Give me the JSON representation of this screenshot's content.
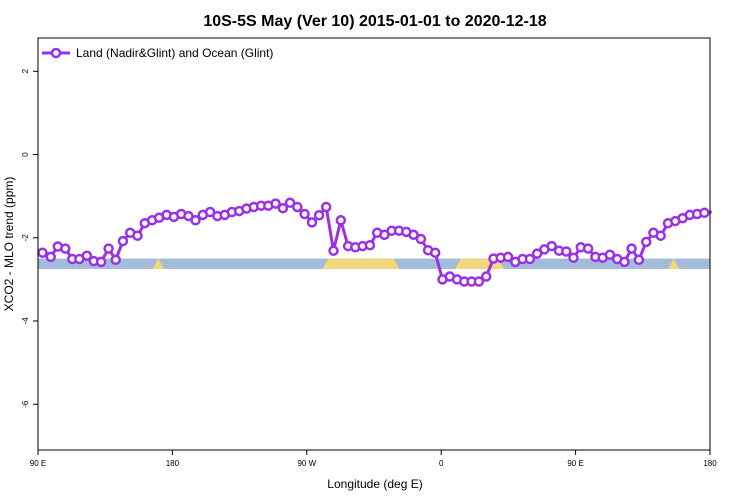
{
  "chart_data": {
    "type": "line",
    "title": "10S-5S May (Ver 10)   2015-01-01 to 2020-12-18",
    "xlabel": "Longitude (deg E)",
    "ylabel": "XCO2 - MLO trend (ppm)",
    "xlim": [
      90,
      450
    ],
    "ylim": [
      -7.1,
      2.8
    ],
    "x_ticks": [
      {
        "value": 90,
        "label": "90 E"
      },
      {
        "value": 162,
        "label": "180"
      },
      {
        "value": 234,
        "label": "90 W"
      },
      {
        "value": 306,
        "label": "0"
      },
      {
        "value": 378,
        "label": "90 E"
      },
      {
        "value": 450,
        "label": "180"
      }
    ],
    "y_ticks": [
      {
        "value": 2,
        "label": "2"
      },
      {
        "value": 0,
        "label": "0"
      },
      {
        "value": -2,
        "label": "-2"
      },
      {
        "value": -4,
        "label": "-4"
      },
      {
        "value": -6,
        "label": "-6"
      }
    ],
    "surface_band": {
      "y_range": [
        -2.75,
        -2.5
      ],
      "ocean_color": "#a3bcd9",
      "land_color": "#f5d77e",
      "land_segments": [
        [
          153,
          156
        ],
        [
          244,
          282
        ],
        [
          315,
          338
        ],
        [
          429,
          432
        ]
      ]
    },
    "series": [
      {
        "name": "Land (Nadir&Glint) and Ocean (Glint)",
        "color": "#9b30e8",
        "x": [
          92.4,
          96.8,
          100.6,
          104.6,
          108.4,
          112.2,
          116.2,
          119.9,
          123.8,
          127.8,
          131.6,
          135.5,
          139.4,
          143.3,
          147.2,
          151.1,
          154.9,
          158.9,
          162.8,
          166.7,
          170.6,
          174.4,
          178.3,
          182.2,
          186.1,
          190.0,
          193.9,
          197.8,
          201.7,
          205.6,
          209.5,
          213.4,
          217.3,
          221.2,
          225.0,
          228.9,
          232.8,
          236.8,
          240.6,
          244.4,
          248.3,
          252.2,
          256.1,
          260.0,
          263.9,
          267.8,
          271.7,
          275.6,
          279.5,
          283.4,
          287.3,
          291.2,
          295.1,
          299.0,
          302.8,
          306.7,
          310.6,
          314.5,
          318.4,
          322.3,
          326.2,
          330.1,
          334.0,
          337.9,
          341.8,
          345.7,
          349.6,
          353.5,
          357.4,
          361.3,
          365.2,
          369.1,
          373.0,
          376.9,
          380.8,
          384.7,
          388.6,
          392.5,
          396.4,
          400.3,
          404.2,
          408.0,
          411.9,
          415.8,
          419.7,
          423.6,
          427.5,
          431.4,
          435.3,
          439.2,
          443.1,
          447.0,
          450.9
        ],
        "y": [
          -2.36,
          -2.46,
          -2.21,
          -2.26,
          -2.51,
          -2.51,
          -2.43,
          -2.56,
          -2.58,
          -2.26,
          -2.53,
          -2.08,
          -1.88,
          -1.95,
          -1.65,
          -1.58,
          -1.52,
          -1.45,
          -1.5,
          -1.43,
          -1.48,
          -1.58,
          -1.45,
          -1.38,
          -1.48,
          -1.45,
          -1.38,
          -1.36,
          -1.3,
          -1.26,
          -1.23,
          -1.23,
          -1.18,
          -1.29,
          -1.16,
          -1.26,
          -1.43,
          -1.63,
          -1.46,
          -1.26,
          -2.31,
          -1.58,
          -2.2,
          -2.23,
          -2.2,
          -2.18,
          -1.88,
          -1.93,
          -1.83,
          -1.83,
          -1.86,
          -1.93,
          -2.03,
          -2.3,
          -2.36,
          -3.0,
          -2.93,
          -3.0,
          -3.05,
          -3.05,
          -3.05,
          -2.93,
          -2.5,
          -2.48,
          -2.46,
          -2.58,
          -2.51,
          -2.51,
          -2.38,
          -2.28,
          -2.2,
          -2.31,
          -2.33,
          -2.48,
          -2.23,
          -2.26,
          -2.46,
          -2.48,
          -2.41,
          -2.51,
          -2.58,
          -2.26,
          -2.53,
          -2.1,
          -1.88,
          -1.95,
          -1.65,
          -1.6,
          -1.53,
          -1.45,
          -1.43,
          -1.4,
          -1.38
        ]
      }
    ],
    "legend": {
      "placement": "top-left"
    }
  }
}
